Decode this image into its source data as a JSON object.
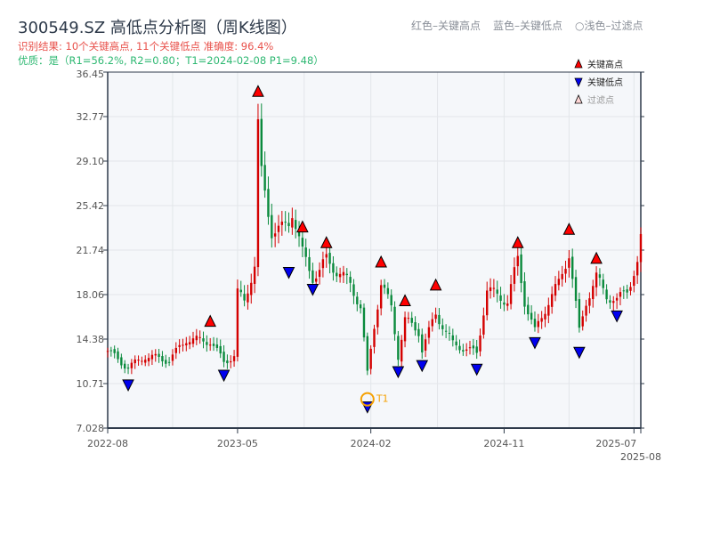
{
  "header": {
    "title": "300549.SZ 高低点分析图（周K线图）",
    "result": "识别结果: 10个关键高点, 11个关键低点  准确度: 96.4%",
    "quality": "优质：是（R1=56.2%, R2=0.80；T1=2024-02-08 P1=9.48）",
    "hint_red": "红色–关键高点",
    "hint_blue": "蓝色–关键低点",
    "hint_light": "○浅色–过滤点"
  },
  "colors": {
    "up": "#d40000",
    "down": "#0a8a3c",
    "high": "#ff0000",
    "low": "#0000ee",
    "t1": "#f5a000",
    "grid": "#e3e6ea",
    "bg": "#f5f7fa",
    "axis": "#2e3a4a"
  },
  "chart_data": {
    "type": "candlestick",
    "title": "300549.SZ 高低点分析图（周K线图）",
    "ylim": [
      7.028,
      36.45
    ],
    "yticks": [
      "36.45",
      "32.77",
      "29.10",
      "25.42",
      "21.74",
      "18.06",
      "14.38",
      "10.71",
      "7.028"
    ],
    "xlim_weeks": [
      0,
      156
    ],
    "xticks": [
      {
        "week": 0,
        "label": "2022-08"
      },
      {
        "week": 38,
        "label": "2023-05"
      },
      {
        "week": 77,
        "label": "2024-02"
      },
      {
        "week": 116,
        "label": "2024-11"
      },
      {
        "week": 154,
        "label": "2025-07"
      },
      {
        "week": 156,
        "label": "2025-08"
      }
    ],
    "close_anchors": [
      [
        0,
        13.4
      ],
      [
        6,
        12.0
      ],
      [
        11,
        13.0
      ],
      [
        18,
        12.6
      ],
      [
        23,
        14.4
      ],
      [
        30,
        14.2
      ],
      [
        34,
        12.5
      ],
      [
        37,
        13.0
      ],
      [
        38,
        18.2
      ],
      [
        40,
        17.5
      ],
      [
        43,
        20.5
      ],
      [
        44,
        32.0
      ],
      [
        45,
        28
      ],
      [
        48,
        23.3
      ],
      [
        51,
        23.5
      ],
      [
        53,
        24.0
      ],
      [
        54,
        25
      ],
      [
        57,
        21.5
      ],
      [
        60,
        19.5
      ],
      [
        62,
        20
      ],
      [
        64,
        21
      ],
      [
        67,
        20
      ],
      [
        71,
        19
      ],
      [
        74,
        17
      ],
      [
        76,
        11.5
      ],
      [
        78,
        15.5
      ],
      [
        80,
        19
      ],
      [
        83,
        17
      ],
      [
        85,
        13
      ],
      [
        87,
        16
      ],
      [
        91,
        15
      ],
      [
        92,
        13.5
      ],
      [
        96,
        16.5
      ],
      [
        101,
        14
      ],
      [
        108,
        13.2
      ],
      [
        111,
        18.5
      ],
      [
        114,
        18
      ],
      [
        117,
        17.5
      ],
      [
        120,
        21
      ],
      [
        122,
        17.5
      ],
      [
        125,
        15
      ],
      [
        129,
        17.5
      ],
      [
        132,
        19
      ],
      [
        135,
        21.5
      ],
      [
        138,
        15
      ],
      [
        140,
        17.5
      ],
      [
        143,
        19.5
      ],
      [
        146,
        18
      ],
      [
        149,
        17.5
      ],
      [
        152,
        18.5
      ],
      [
        155,
        20.5
      ],
      [
        156,
        22.5
      ]
    ],
    "key_highs": [
      [
        30,
        15.0
      ],
      [
        44,
        34.0
      ],
      [
        57,
        22.8
      ],
      [
        64,
        21.5
      ],
      [
        80,
        19.9
      ],
      [
        87,
        16.7
      ],
      [
        96,
        18.0
      ],
      [
        120,
        21.5
      ],
      [
        135,
        22.6
      ],
      [
        143,
        20.2
      ]
    ],
    "key_lows": [
      [
        6,
        11.3
      ],
      [
        34,
        12.1
      ],
      [
        53,
        20.6
      ],
      [
        60,
        19.2
      ],
      [
        76,
        9.48
      ],
      [
        85,
        12.4
      ],
      [
        92,
        12.9
      ],
      [
        108,
        12.6
      ],
      [
        125,
        14.8
      ],
      [
        138,
        14.0
      ],
      [
        149,
        17.0
      ]
    ],
    "t1": {
      "week": 76,
      "price": 9.48,
      "label": "T1"
    },
    "legend": {
      "position": "top-right",
      "items": [
        "关键高点",
        "关键低点",
        "过滤点"
      ]
    }
  }
}
